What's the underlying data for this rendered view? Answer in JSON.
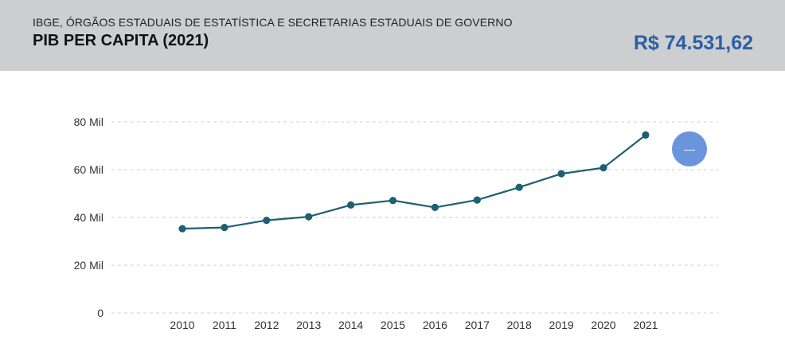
{
  "header": {
    "source": "IBGE, ÓRGÃOS ESTADUAIS DE ESTATÍSTICA E SECRETARIAS ESTADUAIS DE GOVERNO",
    "title": "PIB PER CAPITA (2021)",
    "value": "R$ 74.531,62",
    "bg_color": "#cdcecf",
    "value_color": "#2a5fa5"
  },
  "chart_data": {
    "type": "line",
    "title": "",
    "xlabel": "",
    "ylabel": "",
    "x": [
      "2010",
      "2011",
      "2012",
      "2013",
      "2014",
      "2015",
      "2016",
      "2017",
      "2018",
      "2019",
      "2020",
      "2021"
    ],
    "series": [
      {
        "values": [
          35300,
          35800,
          38800,
          40300,
          45200,
          47100,
          44200,
          47300,
          52600,
          58300,
          60800,
          74500
        ],
        "color": "#1f5f73"
      }
    ],
    "ylim": [
      0,
      80000
    ],
    "yticks": [
      0,
      20000,
      40000,
      60000,
      80000
    ],
    "ytick_labels": [
      "0",
      "20 Mil",
      "40 Mil",
      "60 Mil",
      "80 Mil"
    ],
    "grid": true,
    "legend": "none"
  },
  "overlay": {
    "icon": "minus-icon",
    "color": "#6a95dd",
    "glyph": "—"
  }
}
